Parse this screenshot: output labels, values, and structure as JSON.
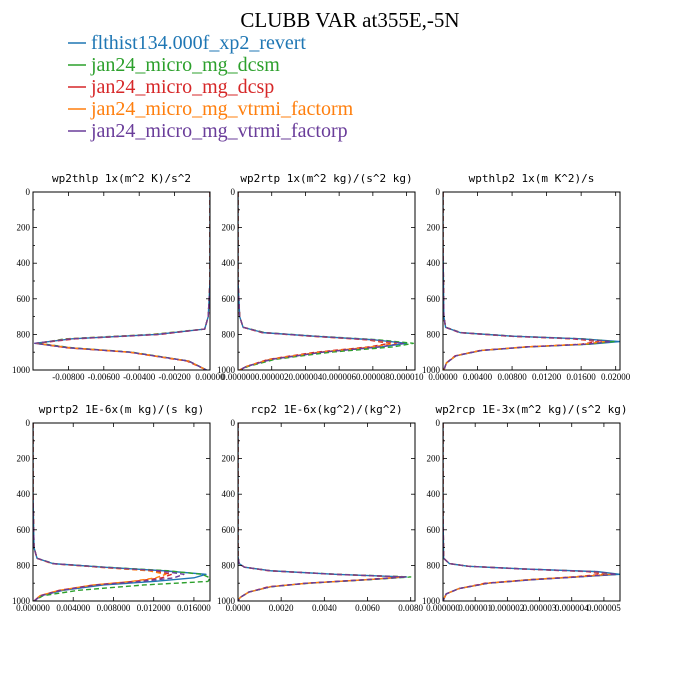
{
  "figure": {
    "title": "CLUBB VAR at355E,-5N",
    "legend": [
      {
        "label": "flthist134.000f_xp2_revert",
        "color": "#1f77b4",
        "dash": "solid"
      },
      {
        "label": "jan24_micro_mg_dcsm",
        "color": "#2ca02c",
        "dash": "dash"
      },
      {
        "label": "jan24_micro_mg_dcsp",
        "color": "#d62728",
        "dash": "dash"
      },
      {
        "label": "jan24_micro_mg_vtrmi_factorm",
        "color": "#ff7f0e",
        "dash": "dash"
      },
      {
        "label": "jan24_micro_mg_vtrmi_factorp",
        "color": "#6a3d9a",
        "dash": "dash"
      }
    ]
  },
  "chart_data": [
    {
      "type": "line",
      "title": "wp2thlp  1x(m^2 K)/s^2",
      "xlim": [
        -0.01,
        0.0
      ],
      "ylim": [
        1000,
        0
      ],
      "xticks": [
        -0.008,
        -0.006,
        -0.004,
        -0.002,
        0.0
      ],
      "xtick_labels": [
        "-0.00800",
        "-0.00600",
        "-0.00400",
        "-0.00200",
        "0.00000"
      ],
      "yticks": [
        0,
        200,
        400,
        600,
        800,
        1000
      ],
      "ytick_labels": [
        "0",
        "200",
        "400",
        "600",
        "800",
        "1000"
      ],
      "y": [
        0,
        100,
        300,
        500,
        700,
        770,
        800,
        825,
        850,
        875,
        900,
        950,
        1000
      ],
      "series": [
        {
          "values": [
            0,
            0,
            0,
            0,
            -0.0001,
            -0.0003,
            -0.003,
            -0.0078,
            -0.0099,
            -0.008,
            -0.0045,
            -0.0012,
            -0.0002
          ]
        },
        {
          "values": [
            0,
            0,
            0,
            0,
            -0.0001,
            -0.0003,
            -0.0033,
            -0.0082,
            -0.0097,
            -0.0078,
            -0.0044,
            -0.0012,
            -0.0002
          ]
        },
        {
          "values": [
            0,
            0,
            0,
            0,
            -0.0001,
            -0.0003,
            -0.0028,
            -0.0076,
            -0.0098,
            -0.0081,
            -0.0046,
            -0.0013,
            -0.0002
          ]
        },
        {
          "values": [
            0,
            0,
            0,
            0,
            -0.0001,
            -0.0003,
            -0.0031,
            -0.008,
            -0.0098,
            -0.0079,
            -0.0045,
            -0.0012,
            -0.0002
          ]
        },
        {
          "values": [
            0,
            0,
            0,
            0,
            -0.0001,
            -0.0003,
            -0.003,
            -0.0079,
            -0.0099,
            -0.008,
            -0.0045,
            -0.0012,
            -0.0002
          ]
        }
      ]
    },
    {
      "type": "line",
      "title": "wp2rtp  1x(m^2 kg)/(s^2 kg)",
      "xlim": [
        0,
        1.05e-05
      ],
      "ylim": [
        1000,
        0
      ],
      "xticks": [
        0,
        2e-06,
        4e-06,
        6e-06,
        8e-06,
        1e-05
      ],
      "xtick_labels": [
        "0.000000",
        "0.000002",
        "0.000004",
        "0.000006",
        "0.000008",
        "0.000010"
      ],
      "yticks": [
        0,
        200,
        400,
        600,
        800,
        1000
      ],
      "ytick_labels": [
        "0",
        "200",
        "400",
        "600",
        "800",
        "1000"
      ],
      "y": [
        0,
        200,
        500,
        700,
        760,
        790,
        810,
        830,
        850,
        870,
        900,
        940,
        980,
        1000
      ],
      "series": [
        {
          "values": [
            0,
            0,
            0,
            1e-07,
            3e-07,
            1.5e-06,
            4.5e-06,
            8e-06,
            1e-05,
            8.5e-06,
            5e-06,
            2e-06,
            5e-07,
            1e-07
          ]
        },
        {
          "values": [
            0,
            0,
            0,
            1e-07,
            3e-07,
            1.6e-06,
            4.7e-06,
            8.3e-06,
            1.04e-05,
            9.2e-06,
            5.5e-06,
            2.2e-06,
            6e-07,
            1e-07
          ]
        },
        {
          "values": [
            0,
            0,
            0,
            1e-07,
            3e-07,
            1.4e-06,
            4.3e-06,
            7.6e-06,
            9e-06,
            7.8e-06,
            4.6e-06,
            1.8e-06,
            5e-07,
            1e-07
          ]
        },
        {
          "values": [
            0,
            0,
            0,
            1e-07,
            3e-07,
            1.5e-06,
            4.4e-06,
            7.8e-06,
            9.4e-06,
            8e-06,
            4.8e-06,
            1.9e-06,
            5e-07,
            1e-07
          ]
        },
        {
          "values": [
            0,
            0,
            0,
            1e-07,
            3e-07,
            1.5e-06,
            4.5e-06,
            8e-06,
            9.8e-06,
            8.4e-06,
            5e-06,
            2e-06,
            5e-07,
            1e-07
          ]
        }
      ]
    },
    {
      "type": "line",
      "title": "wpthlp2  1x(m K^2)/s",
      "xlim": [
        0,
        0.0205
      ],
      "ylim": [
        1000,
        0
      ],
      "xticks": [
        0,
        0.004,
        0.008,
        0.012,
        0.016,
        0.02
      ],
      "xtick_labels": [
        "0.00000",
        "0.00400",
        "0.00800",
        "0.01200",
        "0.01600",
        "0.02000"
      ],
      "yticks": [
        0,
        200,
        400,
        600,
        800,
        1000
      ],
      "ytick_labels": [
        "0",
        "200",
        "400",
        "600",
        "800",
        "1000"
      ],
      "y": [
        0,
        300,
        700,
        760,
        790,
        810,
        825,
        840,
        855,
        870,
        890,
        920,
        960,
        1000
      ],
      "series": [
        {
          "values": [
            0,
            0,
            0.0001,
            0.0003,
            0.002,
            0.008,
            0.016,
            0.0205,
            0.017,
            0.01,
            0.0045,
            0.0015,
            0.0004,
            0.0001
          ]
        },
        {
          "values": [
            0,
            0,
            0.0001,
            0.0003,
            0.0021,
            0.0082,
            0.0162,
            0.0198,
            0.0168,
            0.0099,
            0.0044,
            0.0015,
            0.0004,
            0.0001
          ]
        },
        {
          "values": [
            0,
            0,
            0.0001,
            0.0003,
            0.0019,
            0.0076,
            0.015,
            0.018,
            0.016,
            0.0096,
            0.0043,
            0.0014,
            0.0004,
            0.0001
          ]
        },
        {
          "values": [
            0,
            0,
            0.0001,
            0.0003,
            0.002,
            0.0078,
            0.0155,
            0.0188,
            0.0163,
            0.0097,
            0.0044,
            0.0015,
            0.0004,
            0.0001
          ]
        },
        {
          "values": [
            0,
            0,
            0.0001,
            0.0003,
            0.002,
            0.008,
            0.0158,
            0.0195,
            0.0166,
            0.0099,
            0.0045,
            0.0015,
            0.0004,
            0.0001
          ]
        }
      ]
    },
    {
      "type": "line",
      "title": "wprtp2  1E-6x(m kg)/(s kg)",
      "xlim": [
        0,
        0.0176
      ],
      "ylim": [
        1000,
        0
      ],
      "xticks": [
        0,
        0.004,
        0.008,
        0.012,
        0.016
      ],
      "xtick_labels": [
        "0.000000",
        "0.004000",
        "0.008000",
        "0.012000",
        "0.016000"
      ],
      "yticks": [
        0,
        200,
        400,
        600,
        800,
        1000
      ],
      "ytick_labels": [
        "0",
        "200",
        "400",
        "600",
        "800",
        "1000"
      ],
      "y": [
        0,
        400,
        700,
        760,
        790,
        810,
        830,
        850,
        870,
        890,
        910,
        940,
        970,
        1000
      ],
      "series": [
        {
          "values": [
            0,
            0,
            0.0001,
            0.0004,
            0.002,
            0.007,
            0.013,
            0.0172,
            0.016,
            0.012,
            0.007,
            0.003,
            0.0008,
            0.0001
          ]
        },
        {
          "values": [
            0,
            0,
            0.0001,
            0.0004,
            0.0021,
            0.0072,
            0.0134,
            0.0168,
            0.0176,
            0.0174,
            0.011,
            0.0045,
            0.001,
            0.0001
          ]
        },
        {
          "values": [
            0,
            0,
            0.0001,
            0.0004,
            0.0019,
            0.0066,
            0.0118,
            0.0138,
            0.0128,
            0.01,
            0.006,
            0.0026,
            0.0007,
            0.0001
          ]
        },
        {
          "values": [
            0,
            0,
            0.0001,
            0.0004,
            0.0019,
            0.0065,
            0.0115,
            0.0132,
            0.0122,
            0.0098,
            0.006,
            0.0026,
            0.0007,
            0.0001
          ]
        },
        {
          "values": [
            0,
            0,
            0.0001,
            0.0004,
            0.002,
            0.0069,
            0.0126,
            0.015,
            0.014,
            0.0108,
            0.0064,
            0.0028,
            0.0008,
            0.0001
          ]
        }
      ]
    },
    {
      "type": "line",
      "title": "rcp2  1E-6x(kg^2)/(kg^2)",
      "xlim": [
        0,
        0.0082
      ],
      "ylim": [
        1000,
        0
      ],
      "xticks": [
        0,
        0.002,
        0.004,
        0.006,
        0.008
      ],
      "xtick_labels": [
        "0.0000",
        "0.0020",
        "0.0040",
        "0.0060",
        "0.0080"
      ],
      "yticks": [
        0,
        200,
        400,
        600,
        800,
        1000
      ],
      "ytick_labels": [
        "0",
        "200",
        "400",
        "600",
        "800",
        "1000"
      ],
      "y": [
        0,
        500,
        750,
        790,
        810,
        830,
        850,
        865,
        880,
        900,
        920,
        950,
        980,
        1000
      ],
      "series": [
        {
          "values": [
            0,
            0,
            0,
            5e-05,
            0.0003,
            0.0015,
            0.0045,
            0.0078,
            0.006,
            0.0032,
            0.0015,
            0.0005,
            0.0001,
            0
          ]
        },
        {
          "values": [
            0,
            0,
            0,
            5e-05,
            0.0003,
            0.0015,
            0.0046,
            0.008,
            0.0061,
            0.0033,
            0.0015,
            0.0005,
            0.0001,
            0
          ]
        },
        {
          "values": [
            0,
            0,
            0,
            5e-05,
            0.0003,
            0.0014,
            0.0044,
            0.0076,
            0.0059,
            0.0032,
            0.0014,
            0.0005,
            0.0001,
            0
          ]
        },
        {
          "values": [
            0,
            0,
            0,
            5e-05,
            0.0003,
            0.0015,
            0.0045,
            0.0077,
            0.006,
            0.0032,
            0.0015,
            0.0005,
            0.0001,
            0
          ]
        },
        {
          "values": [
            0,
            0,
            0,
            5e-05,
            0.0003,
            0.0015,
            0.0045,
            0.0078,
            0.006,
            0.0032,
            0.0015,
            0.0005,
            0.0001,
            0
          ]
        }
      ]
    },
    {
      "type": "line",
      "title": "wp2rcp  1E-3x(m^2 kg)/(s^2 kg)",
      "xlim": [
        0,
        5.5e-06
      ],
      "ylim": [
        1000,
        0
      ],
      "xticks": [
        0,
        1e-06,
        2e-06,
        3e-06,
        4e-06,
        5e-06
      ],
      "xtick_labels": [
        "0.000000",
        "0.000001",
        "0.000002",
        "0.000003",
        "0.000004",
        "0.000005"
      ],
      "yticks": [
        0,
        200,
        400,
        600,
        800,
        1000
      ],
      "ytick_labels": [
        "0",
        "200",
        "400",
        "600",
        "800",
        "1000"
      ],
      "y": [
        0,
        500,
        760,
        790,
        805,
        820,
        835,
        850,
        865,
        880,
        900,
        930,
        960,
        1000
      ],
      "series": [
        {
          "values": [
            0,
            0,
            2e-08,
            2e-07,
            8e-07,
            2.5e-06,
            4.8e-06,
            5.5e-06,
            4.2e-06,
            2.8e-06,
            1.4e-06,
            5e-07,
            1e-07,
            0
          ]
        },
        {
          "values": [
            0,
            0,
            2e-08,
            2e-07,
            8e-07,
            2.5e-06,
            4.7e-06,
            5.4e-06,
            4.1e-06,
            2.7e-06,
            1.4e-06,
            5e-07,
            1e-07,
            0
          ]
        },
        {
          "values": [
            0,
            0,
            2e-08,
            2e-07,
            8e-07,
            2.4e-06,
            4.5e-06,
            5e-06,
            4e-06,
            2.7e-06,
            1.3e-06,
            5e-07,
            1e-07,
            0
          ]
        },
        {
          "values": [
            0,
            0,
            2e-08,
            2e-07,
            8e-07,
            2.5e-06,
            4.6e-06,
            5.2e-06,
            4.1e-06,
            2.7e-06,
            1.4e-06,
            5e-07,
            1e-07,
            0
          ]
        },
        {
          "values": [
            0,
            0,
            2e-08,
            2e-07,
            8e-07,
            2.5e-06,
            4.7e-06,
            5.4e-06,
            4.2e-06,
            2.8e-06,
            1.4e-06,
            5e-07,
            1e-07,
            0
          ]
        }
      ]
    }
  ]
}
